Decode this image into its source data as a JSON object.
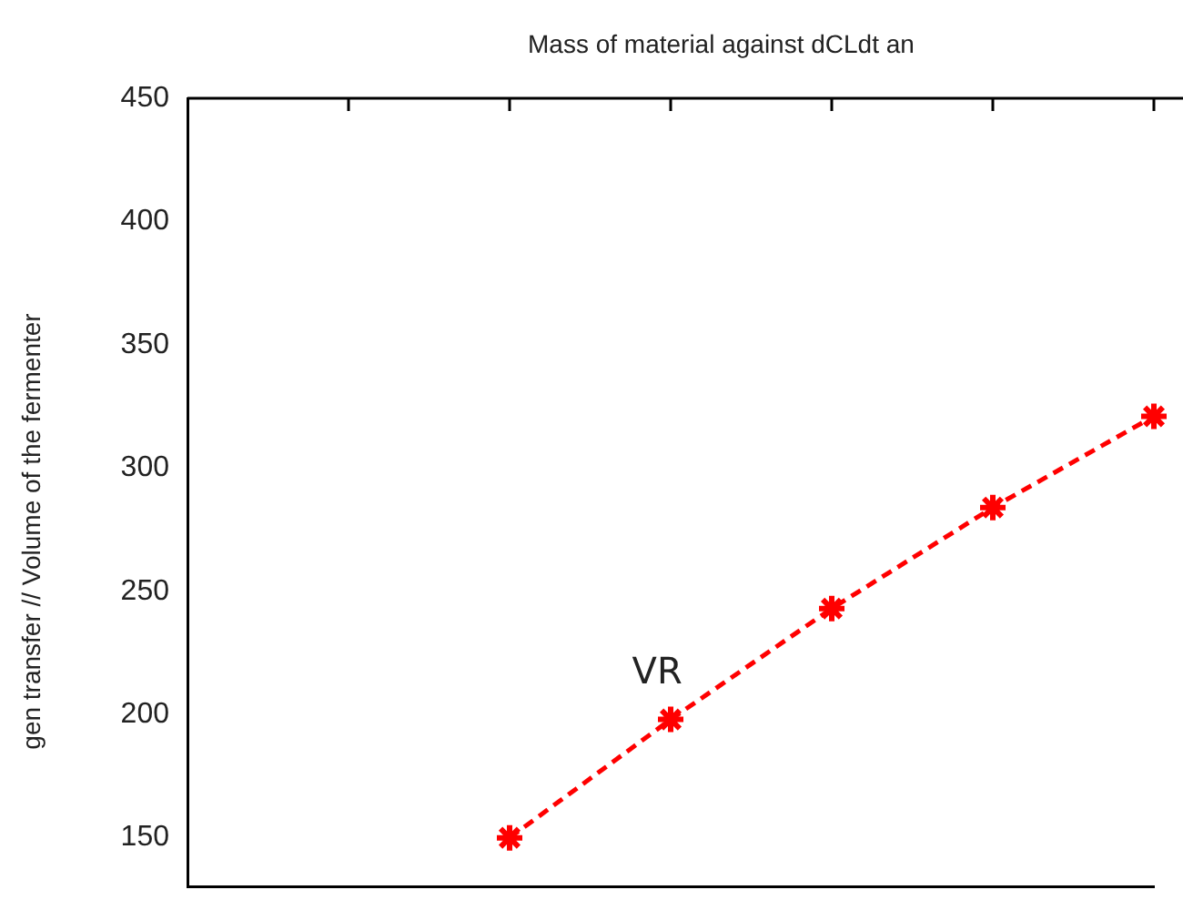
{
  "chart_data": {
    "type": "line",
    "title": "Mass of material against dCLdt an",
    "ylabel": "gen transfer // Volume of the fermenter",
    "categories": [
      null,
      null,
      null,
      null,
      null,
      null,
      null
    ],
    "series": [
      {
        "color": "#ff0000",
        "values": [
          null,
          null,
          150,
          198,
          243,
          284,
          321
        ]
      }
    ],
    "ylim": [
      130,
      450
    ],
    "yticks": [
      150,
      200,
      250,
      300,
      350,
      400,
      450
    ],
    "tick_labels": "y",
    "grid": false,
    "legend": false,
    "marker": "cross",
    "line_style": "dashed",
    "annotations": [
      "VR"
    ]
  }
}
